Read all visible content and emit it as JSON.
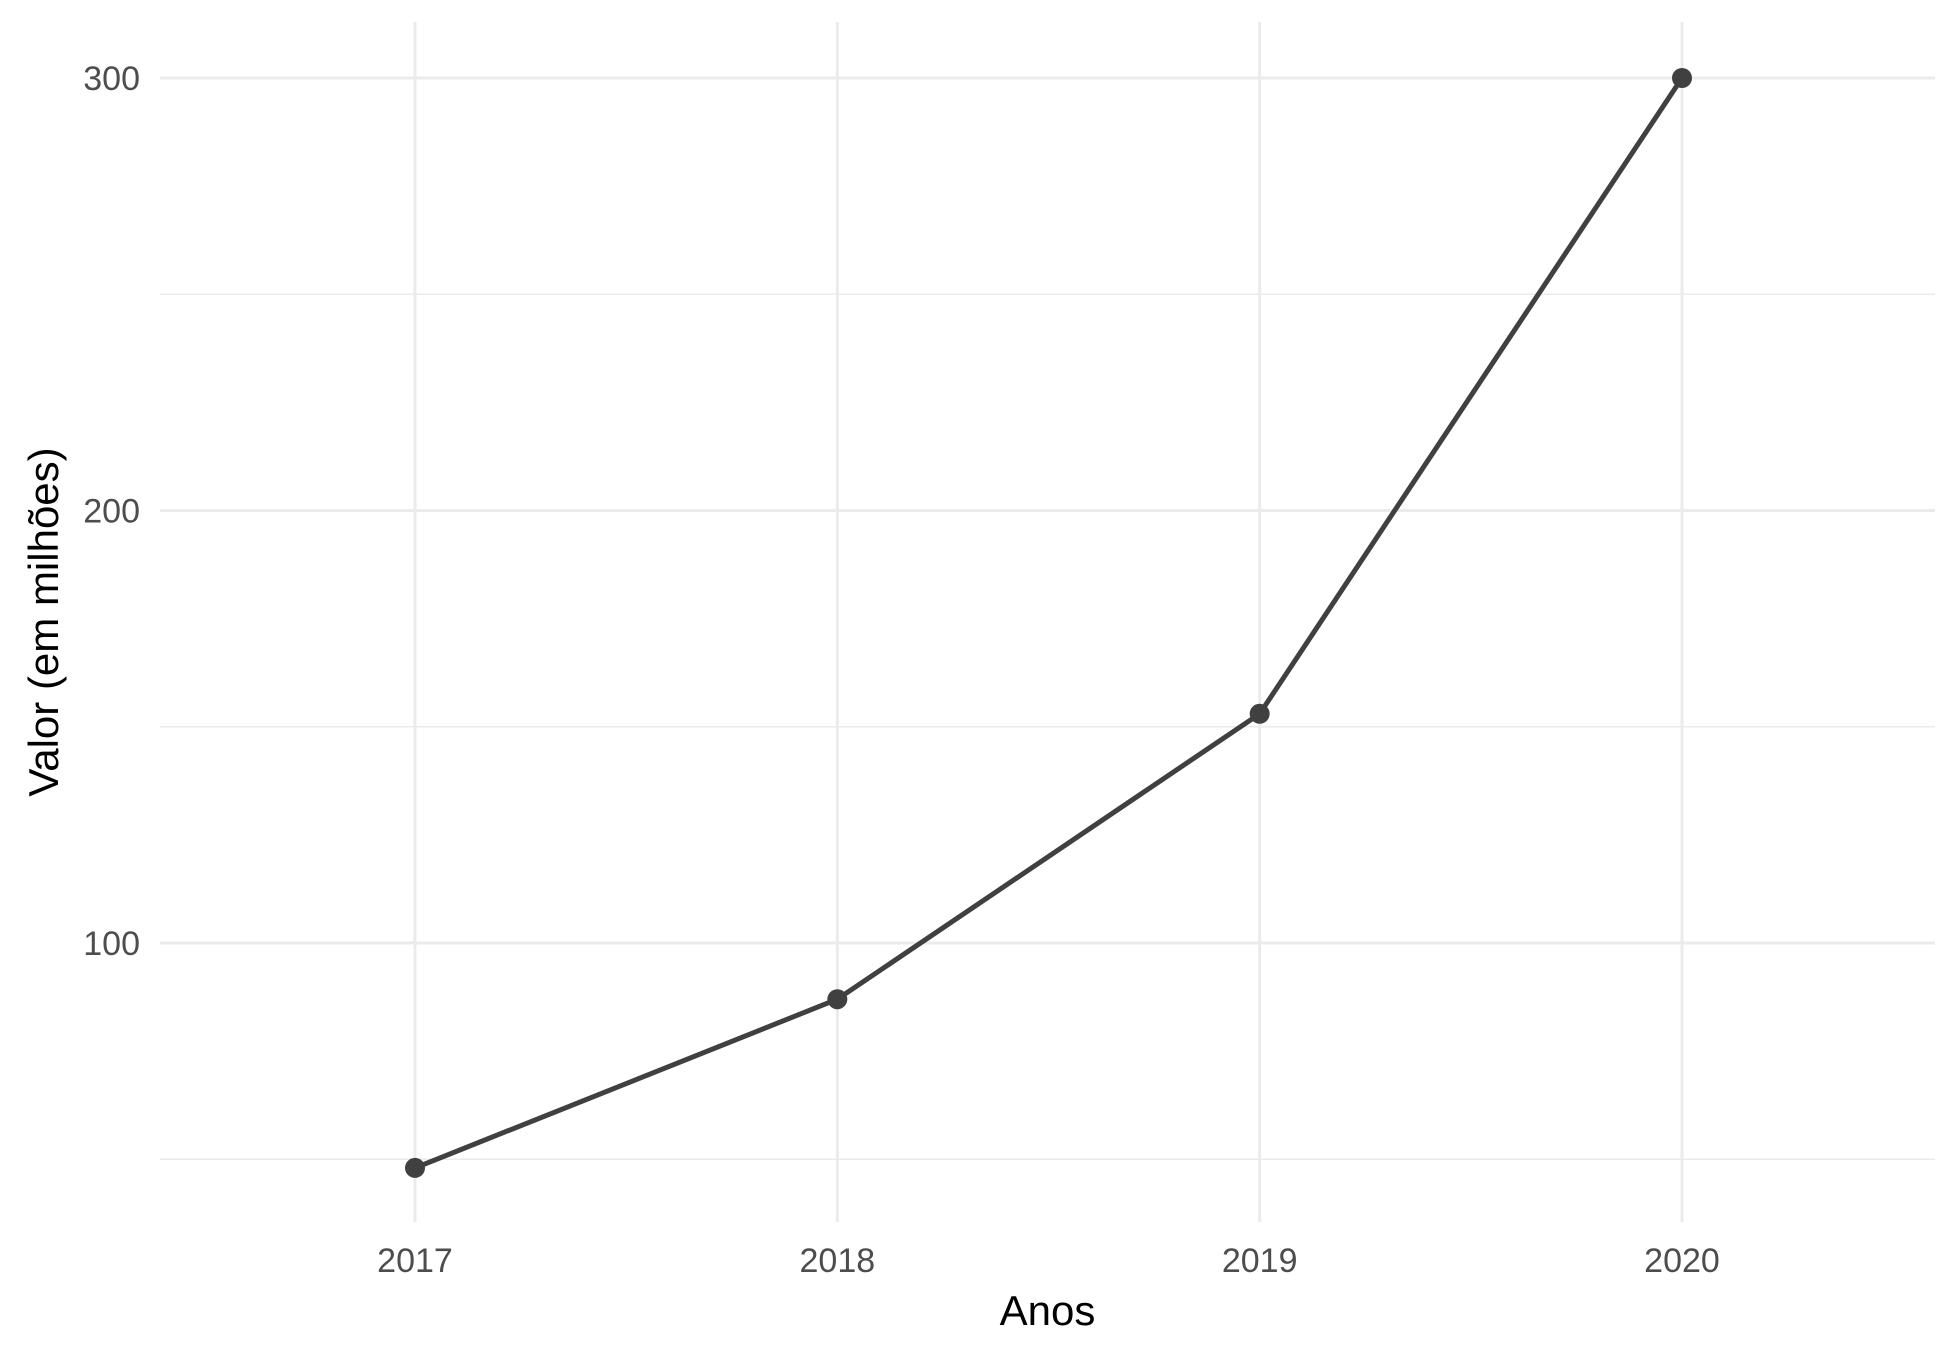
{
  "chart_data": {
    "type": "line",
    "x": [
      "2017",
      "2018",
      "2019",
      "2020"
    ],
    "series": [
      {
        "values": [
          48,
          87,
          153,
          300
        ]
      }
    ],
    "xlabel": "Anos",
    "ylabel": "Valor (em milhões)",
    "yticks": [
      "100",
      "200",
      "300"
    ],
    "ylim": [
      37,
      313
    ],
    "grid": true,
    "legend": "none",
    "colors": {
      "series": "#404040",
      "grid": "#ebebeb",
      "tick_text": "#4d4d4d",
      "axis_title": "#000000",
      "background": "#ffffff"
    }
  }
}
